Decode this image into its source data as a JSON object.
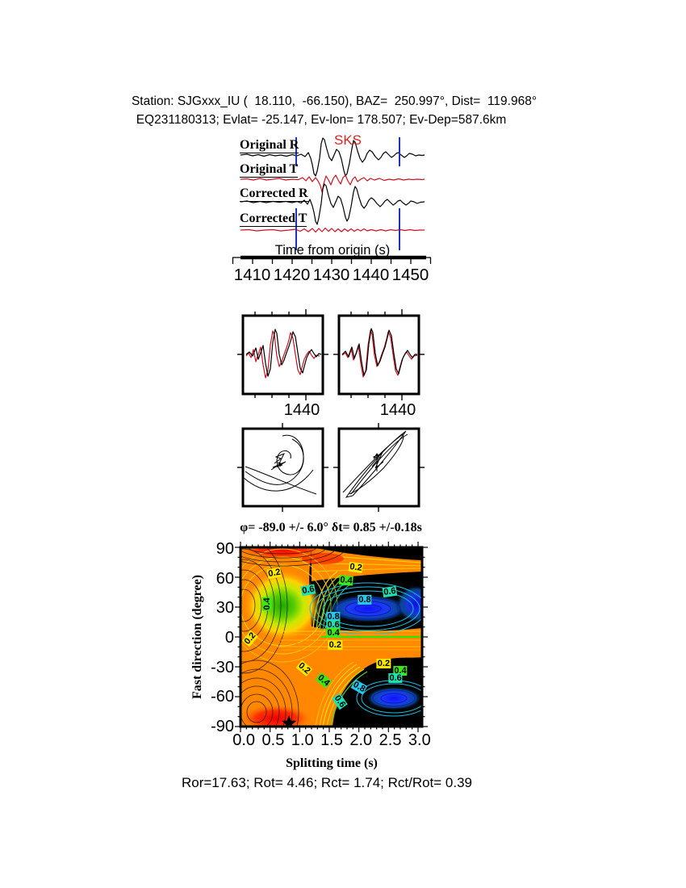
{
  "header": {
    "line1": "Station: SJGxxx_IU (  18.110,  -66.150), BAZ=  250.997°, Dist=  119.968°",
    "line2": "EQ231180313; Evlat= -25.147, Ev-lon= 178.507; Ev-Dep=587.6km"
  },
  "traces": {
    "labels": [
      "Original R",
      "Original T",
      "Corrected R",
      "Corrected T"
    ],
    "phase_label": "SKS",
    "axis_label": "Time from origin (s)",
    "ticks": [
      "1410",
      "1420",
      "1430",
      "1440",
      "1450"
    ],
    "colors": {
      "radial_trace": "#000000",
      "transverse_trace": "#cc1122",
      "window_line": "#2233bb",
      "phase_label": "#dd2222"
    },
    "window_times": [
      1421,
      1447
    ]
  },
  "wave_compare": {
    "boxes": [
      {
        "tick_label": "1440"
      },
      {
        "tick_label": "1440"
      }
    ]
  },
  "contour": {
    "title": "φ= -89.0 +/- 6.0° δt= 0.85 +/-0.18s",
    "ylabel": "Fast direction (degree)",
    "xlabel": "Splitting time (s)",
    "yticks": [
      "90",
      "60",
      "30",
      "0",
      "-30",
      "-60",
      "-90"
    ],
    "xticks": [
      "0.0",
      "0.5",
      "1.0",
      "1.5",
      "2.0",
      "2.5",
      "3.0"
    ],
    "level_colors": {
      "0.2": "#ffe800",
      "0.4": "#3ce815",
      "0.6": "#1fe0b0",
      "0.8": "#28c8ee"
    },
    "labels": [
      {
        "v": "0.2",
        "t": 0.57,
        "f": 64,
        "r": -10
      },
      {
        "v": "0.2",
        "t": 1.95,
        "f": 70,
        "r": 8
      },
      {
        "v": "0.4",
        "t": 1.78,
        "f": 57,
        "r": 5
      },
      {
        "v": "0.6",
        "t": 1.15,
        "f": 47,
        "r": -10
      },
      {
        "v": "0.6",
        "t": 2.52,
        "f": 45,
        "r": -8
      },
      {
        "v": "0.8",
        "t": 2.1,
        "f": 37,
        "r": 0
      },
      {
        "v": "0.4",
        "t": 0.45,
        "f": 33,
        "r": -90
      },
      {
        "v": "0.8",
        "t": 1.57,
        "f": 20,
        "r": 0
      },
      {
        "v": "0.6",
        "t": 1.57,
        "f": 12,
        "r": 0
      },
      {
        "v": "0.4",
        "t": 1.57,
        "f": 4,
        "r": 0
      },
      {
        "v": "0.2",
        "t": 1.6,
        "f": -8,
        "r": 0
      },
      {
        "v": "0.2",
        "t": 0.16,
        "f": -2,
        "r": -50
      },
      {
        "v": "0.2",
        "t": 2.42,
        "f": -27,
        "r": 0
      },
      {
        "v": "0.4",
        "t": 2.7,
        "f": -34,
        "r": 0
      },
      {
        "v": "0.6",
        "t": 2.62,
        "f": -41,
        "r": 0
      },
      {
        "v": "0.2",
        "t": 1.08,
        "f": -32,
        "r": 40
      },
      {
        "v": "0.4",
        "t": 1.4,
        "f": -44,
        "r": 40
      },
      {
        "v": "0.8",
        "t": 2.0,
        "f": -50,
        "r": 30
      },
      {
        "v": "0.6",
        "t": 1.68,
        "f": -65,
        "r": 55
      }
    ]
  },
  "footer": {
    "stats": "Ror=17.63; Rot= 4.46; Rct= 1.74; Rct/Rot= 0.39"
  },
  "chart_data": [
    {
      "type": "line",
      "title": "Rotated seismogram traces",
      "xlabel": "Time from origin (s)",
      "xlim": [
        1405,
        1455
      ],
      "xticks": [
        1410,
        1420,
        1430,
        1440,
        1450
      ],
      "series": [
        {
          "name": "Original R",
          "color": "#000000"
        },
        {
          "name": "Original T",
          "color": "#cc1122"
        },
        {
          "name": "Corrected R",
          "color": "#000000"
        },
        {
          "name": "Corrected T",
          "color": "#cc1122"
        }
      ],
      "annotations": [
        {
          "text": "SKS",
          "color": "#dd2222",
          "x": 1430
        }
      ],
      "analysis_window_s": [
        1421,
        1447
      ]
    },
    {
      "type": "line",
      "title": "Fast/slow waveform comparison (left: original, right: corrected)",
      "boxes": 2,
      "xticks": [
        1440
      ],
      "series_colors": [
        "#000000",
        "#cc1122"
      ]
    },
    {
      "type": "scatter",
      "title": "Particle motion (left: original, right: corrected)",
      "boxes": 2
    },
    {
      "type": "heatmap",
      "title": "φ= -89.0 +/- 6.0° δt= 0.85 +/-0.18s",
      "xlabel": "Splitting time (s)",
      "ylabel": "Fast direction (degree)",
      "xlim": [
        0,
        3.05
      ],
      "ylim": [
        -90,
        90
      ],
      "xticks": [
        0.0,
        0.5,
        1.0,
        1.5,
        2.0,
        2.5,
        3.0
      ],
      "yticks": [
        90,
        60,
        30,
        0,
        -30,
        -60,
        -90
      ],
      "contour_levels": [
        0.2,
        0.4,
        0.6,
        0.8
      ],
      "best_fit": {
        "phi_deg": -89.0,
        "phi_err_deg": 6.0,
        "dt_s": 0.85,
        "dt_err_s": 0.18,
        "marker": "star",
        "marker_xy": [
          0.85,
          -89
        ]
      },
      "minima_xy": [
        [
          2.15,
          29
        ],
        [
          2.59,
          -63
        ]
      ],
      "maxima_xy": [
        [
          0.71,
          86
        ],
        [
          0.6,
          -88
        ]
      ]
    }
  ]
}
